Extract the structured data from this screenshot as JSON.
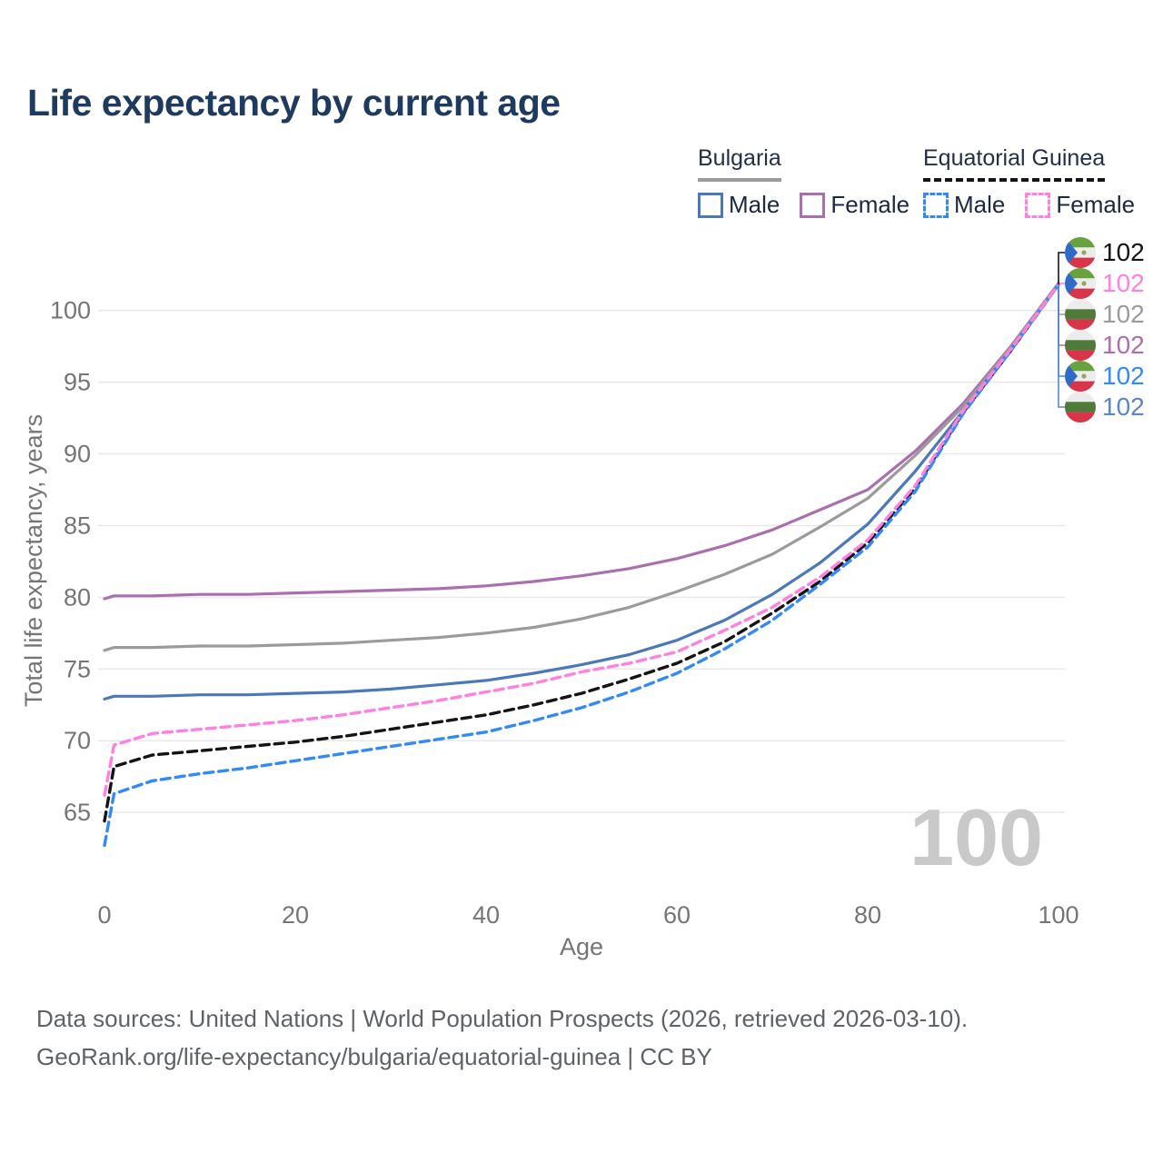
{
  "title": "Life expectancy by current age",
  "legend": {
    "groups": [
      {
        "name": "Bulgaria",
        "line_style": "solid",
        "line_color": "#9b9b9b",
        "items": [
          {
            "label": "Male",
            "swatch_color": "#4a78b9",
            "swatch_dashed": false
          },
          {
            "label": "Female",
            "swatch_color": "#ab6fb0",
            "swatch_dashed": false
          }
        ]
      },
      {
        "name": "Equatorial Guinea",
        "line_style": "dashed",
        "line_color": "#141414",
        "items": [
          {
            "label": "Male",
            "swatch_color": "#338af7",
            "swatch_dashed": true
          },
          {
            "label": "Female",
            "swatch_color": "#ff80e0",
            "swatch_dashed": true
          }
        ]
      }
    ]
  },
  "chart_data": {
    "type": "line",
    "title": "Life expectancy by current age",
    "xlabel": "Age",
    "ylabel": "Total life expectancy, years",
    "x_ticks": [
      0,
      20,
      40,
      60,
      80,
      100
    ],
    "y_ticks": [
      65,
      70,
      75,
      80,
      85,
      90,
      95,
      100
    ],
    "xlim": [
      0,
      100
    ],
    "ylim": [
      62,
      103
    ],
    "grid": "horizontal",
    "legend_position": "top-right",
    "ages": [
      0,
      1,
      5,
      10,
      15,
      20,
      25,
      30,
      35,
      40,
      45,
      50,
      55,
      60,
      65,
      70,
      75,
      80,
      85,
      90,
      95,
      100
    ],
    "series": [
      {
        "id": "bulgaria-female",
        "name": "Bulgaria Female",
        "country": "Bulgaria",
        "sex": "female",
        "color": "#ab6fb0",
        "dashed": false,
        "values": [
          79.9,
          80.1,
          80.1,
          80.2,
          80.2,
          80.3,
          80.4,
          80.5,
          80.6,
          80.8,
          81.1,
          81.5,
          82.0,
          82.7,
          83.6,
          84.7,
          86.1,
          87.5,
          90.2,
          93.5,
          97.5,
          101.9
        ]
      },
      {
        "id": "bulgaria-total",
        "name": "Bulgaria Both sexes",
        "country": "Bulgaria",
        "sex": "total",
        "color": "#9b9b9b",
        "dashed": false,
        "values": [
          76.3,
          76.5,
          76.5,
          76.6,
          76.6,
          76.7,
          76.8,
          77.0,
          77.2,
          77.5,
          77.9,
          78.5,
          79.3,
          80.4,
          81.6,
          83.0,
          84.9,
          86.9,
          89.9,
          93.3,
          97.4,
          101.9
        ]
      },
      {
        "id": "bulgaria-male",
        "name": "Bulgaria Male",
        "country": "Bulgaria",
        "sex": "male",
        "color": "#4a78b9",
        "dashed": false,
        "values": [
          72.9,
          73.1,
          73.1,
          73.2,
          73.2,
          73.3,
          73.4,
          73.6,
          73.9,
          74.2,
          74.7,
          75.3,
          76.0,
          77.0,
          78.4,
          80.2,
          82.4,
          85.1,
          88.8,
          93.0,
          97.3,
          101.8
        ]
      },
      {
        "id": "equatorial-guinea-total",
        "name": "Equatorial Guinea Both sexes",
        "country": "Equatorial Guinea",
        "sex": "total",
        "color": "#141414",
        "dashed": true,
        "values": [
          64.4,
          68.2,
          69.0,
          69.3,
          69.6,
          69.9,
          70.3,
          70.8,
          71.3,
          71.8,
          72.5,
          73.3,
          74.3,
          75.4,
          76.9,
          78.9,
          81.1,
          83.8,
          87.6,
          92.9,
          97.2,
          101.8
        ]
      },
      {
        "id": "equatorial-guinea-male",
        "name": "Equatorial Guinea Male",
        "country": "Equatorial Guinea",
        "sex": "male",
        "color": "#338af7",
        "dashed": true,
        "values": [
          62.7,
          66.3,
          67.2,
          67.7,
          68.1,
          68.6,
          69.1,
          69.6,
          70.1,
          70.6,
          71.4,
          72.3,
          73.4,
          74.7,
          76.4,
          78.4,
          80.9,
          83.5,
          87.4,
          92.8,
          97.2,
          101.8
        ]
      },
      {
        "id": "equatorial-guinea-female",
        "name": "Equatorial Guinea Female",
        "country": "Equatorial Guinea",
        "sex": "female",
        "color": "#ff80e0",
        "dashed": true,
        "values": [
          66.2,
          69.7,
          70.5,
          70.8,
          71.1,
          71.4,
          71.8,
          72.3,
          72.8,
          73.4,
          74.0,
          74.8,
          75.4,
          76.2,
          77.7,
          79.3,
          81.4,
          84.0,
          87.8,
          93.0,
          97.3,
          101.8
        ]
      }
    ]
  },
  "end_labels": [
    {
      "country": "Equatorial Guinea",
      "series": "total",
      "value": "102",
      "color": "#141414"
    },
    {
      "country": "Equatorial Guinea",
      "series": "female",
      "value": "102",
      "color": "#ff80e0"
    },
    {
      "country": "Bulgaria",
      "series": "total",
      "value": "102",
      "color": "#9b9b9b"
    },
    {
      "country": "Bulgaria",
      "series": "female",
      "value": "102",
      "color": "#ab6fb0"
    },
    {
      "country": "Equatorial Guinea",
      "series": "male",
      "value": "102",
      "color": "#338af7"
    },
    {
      "country": "Bulgaria",
      "series": "male",
      "value": "102",
      "color": "#5b86c4"
    }
  ],
  "watermark": "100",
  "footer": {
    "line1": "Data sources: United Nations | World Population Prospects (2026, retrieved 2026-03-10).",
    "line2": "GeoRank.org/life-expectancy/bulgaria/equatorial-guinea | CC BY"
  }
}
